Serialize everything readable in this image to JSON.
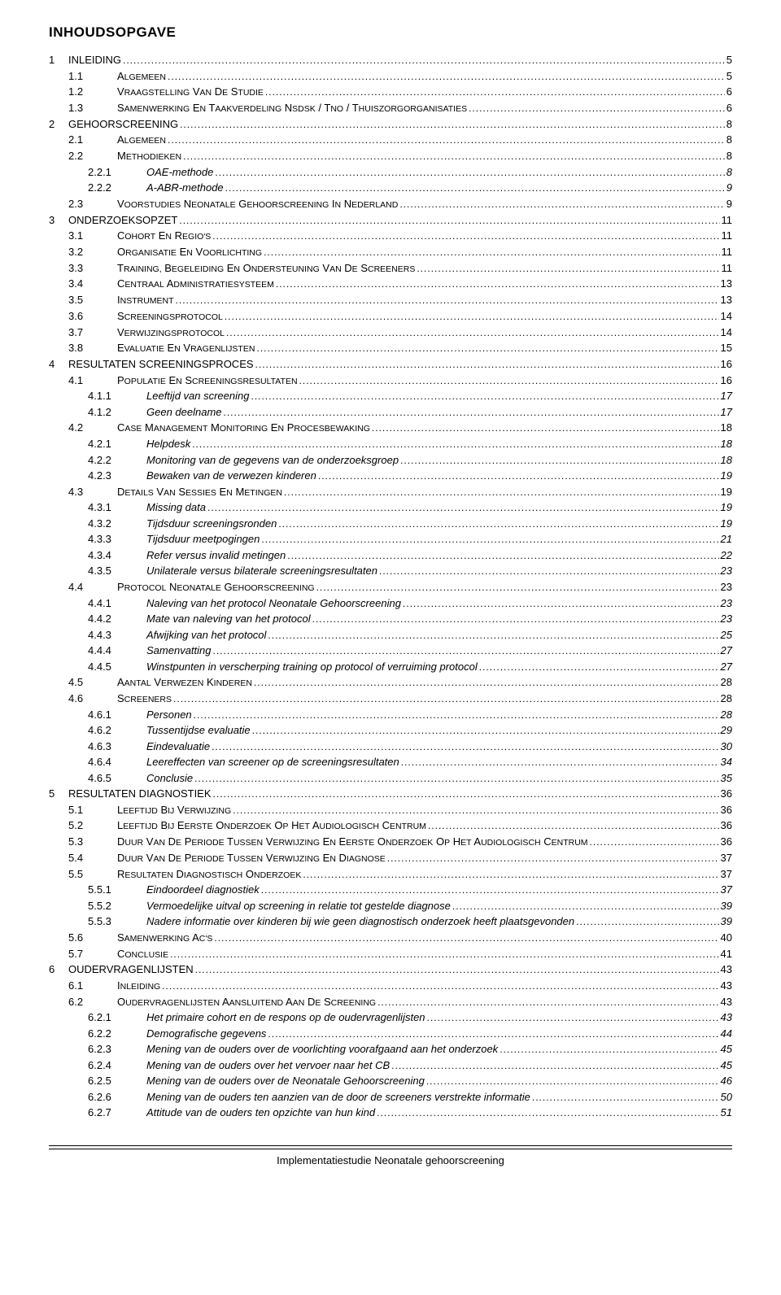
{
  "title": "INHOUDSOPGAVE",
  "footer": "Implementatiestudie Neonatale gehoorscreening",
  "entries": [
    {
      "level": 0,
      "num": "1",
      "label": "INLEIDING",
      "page": "5"
    },
    {
      "level": 1,
      "num": "1.1",
      "label": "ALGEMEEN",
      "page": "5"
    },
    {
      "level": 1,
      "num": "1.2",
      "label": "VRAAGSTELLING VAN DE STUDIE",
      "page": "6"
    },
    {
      "level": 1,
      "num": "1.3",
      "label": "SAMENWERKING EN TAAKVERDELING NSDSK / TNO / THUISZORGORGANISATIES",
      "page": "6"
    },
    {
      "level": 0,
      "num": "2",
      "label": "GEHOORSCREENING",
      "page": "8"
    },
    {
      "level": 1,
      "num": "2.1",
      "label": "ALGEMEEN",
      "page": "8"
    },
    {
      "level": 1,
      "num": "2.2",
      "label": "METHODIEKEN",
      "page": "8"
    },
    {
      "level": 2,
      "num": "2.2.1",
      "label": "OAE-methode",
      "page": "8"
    },
    {
      "level": 2,
      "num": "2.2.2",
      "label": "A-ABR-methode",
      "page": "9"
    },
    {
      "level": 1,
      "num": "2.3",
      "label": "VOORSTUDIES NEONATALE GEHOORSCREENING IN NEDERLAND",
      "page": "9"
    },
    {
      "level": 0,
      "num": "3",
      "label": "ONDERZOEKSOPZET",
      "page": "11"
    },
    {
      "level": 1,
      "num": "3.1",
      "label": "COHORT EN REGIO'S",
      "page": "11"
    },
    {
      "level": 1,
      "num": "3.2",
      "label": "ORGANISATIE EN VOORLICHTING",
      "page": "11"
    },
    {
      "level": 1,
      "num": "3.3",
      "label": "TRAINING, BEGELEIDING EN ONDERSTEUNING VAN DE SCREENERS",
      "page": "11"
    },
    {
      "level": 1,
      "num": "3.4",
      "label": "CENTRAAL ADMINISTRATIESYSTEEM",
      "page": "13"
    },
    {
      "level": 1,
      "num": "3.5",
      "label": "INSTRUMENT",
      "page": "13"
    },
    {
      "level": 1,
      "num": "3.6",
      "label": "SCREENINGSPROTOCOL",
      "page": "14"
    },
    {
      "level": 1,
      "num": "3.7",
      "label": "VERWIJZINGSPROTOCOL",
      "page": "14"
    },
    {
      "level": 1,
      "num": "3.8",
      "label": "EVALUATIE EN VRAGENLIJSTEN",
      "page": "15"
    },
    {
      "level": 0,
      "num": "4",
      "label": "RESULTATEN SCREENINGSPROCES",
      "page": "16"
    },
    {
      "level": 1,
      "num": "4.1",
      "label": "POPULATIE EN SCREENINGSRESULTATEN",
      "page": "16"
    },
    {
      "level": 2,
      "num": "4.1.1",
      "label": "Leeftijd van screening",
      "page": "17"
    },
    {
      "level": 2,
      "num": "4.1.2",
      "label": "Geen deelname",
      "page": "17"
    },
    {
      "level": 1,
      "num": "4.2",
      "label": "CASE MANAGEMENT MONITORING EN PROCESBEWAKING",
      "page": "18"
    },
    {
      "level": 2,
      "num": "4.2.1",
      "label": "Helpdesk",
      "page": "18"
    },
    {
      "level": 2,
      "num": "4.2.2",
      "label": "Monitoring van de gegevens van de onderzoeksgroep",
      "page": "18"
    },
    {
      "level": 2,
      "num": "4.2.3",
      "label": "Bewaken van de verwezen kinderen",
      "page": "19"
    },
    {
      "level": 1,
      "num": "4.3",
      "label": "DETAILS VAN SESSIES EN METINGEN",
      "page": "19"
    },
    {
      "level": 2,
      "num": "4.3.1",
      "label": "Missing data",
      "page": "19"
    },
    {
      "level": 2,
      "num": "4.3.2",
      "label": "Tijdsduur screeningsronden",
      "page": "19"
    },
    {
      "level": 2,
      "num": "4.3.3",
      "label": "Tijdsduur meetpogingen",
      "page": "21"
    },
    {
      "level": 2,
      "num": "4.3.4",
      "label": "Refer versus invalid metingen",
      "page": "22"
    },
    {
      "level": 2,
      "num": "4.3.5",
      "label": "Unilaterale versus bilaterale screeningsresultaten",
      "page": "23"
    },
    {
      "level": 1,
      "num": "4.4",
      "label": "PROTOCOL NEONATALE GEHOORSCREENING",
      "page": "23"
    },
    {
      "level": 2,
      "num": "4.4.1",
      "label": "Naleving van het protocol Neonatale Gehoorscreening",
      "page": "23"
    },
    {
      "level": 2,
      "num": "4.4.2",
      "label": "Mate van naleving van het protocol",
      "page": "23"
    },
    {
      "level": 2,
      "num": "4.4.3",
      "label": "Afwijking van het protocol",
      "page": "25"
    },
    {
      "level": 2,
      "num": "4.4.4",
      "label": "Samenvatting",
      "page": "27"
    },
    {
      "level": 2,
      "num": "4.4.5",
      "label": "Winstpunten in verscherping training op protocol of verruiming protocol",
      "page": "27"
    },
    {
      "level": 1,
      "num": "4.5",
      "label": "AANTAL VERWEZEN KINDEREN",
      "page": "28"
    },
    {
      "level": 1,
      "num": "4.6",
      "label": "SCREENERS",
      "page": "28"
    },
    {
      "level": 2,
      "num": "4.6.1",
      "label": "Personen",
      "page": "28"
    },
    {
      "level": 2,
      "num": "4.6.2",
      "label": "Tussentijdse evaluatie",
      "page": "29"
    },
    {
      "level": 2,
      "num": "4.6.3",
      "label": "Eindevaluatie",
      "page": "30"
    },
    {
      "level": 2,
      "num": "4.6.4",
      "label": "Leereffecten van screener op de screeningsresultaten",
      "page": "34"
    },
    {
      "level": 2,
      "num": "4.6.5",
      "label": "Conclusie",
      "page": "35"
    },
    {
      "level": 0,
      "num": "5",
      "label": "RESULTATEN DIAGNOSTIEK",
      "page": "36"
    },
    {
      "level": 1,
      "num": "5.1",
      "label": "LEEFTIJD BIJ VERWIJZING",
      "page": "36"
    },
    {
      "level": 1,
      "num": "5.2",
      "label": "LEEFTIJD BIJ EERSTE ONDERZOEK OP HET AUDIOLOGISCH CENTRUM",
      "page": "36"
    },
    {
      "level": 1,
      "num": "5.3",
      "label": "DUUR VAN DE PERIODE TUSSEN VERWIJZING EN EERSTE ONDERZOEK OP HET AUDIOLOGISCH CENTRUM",
      "page": "36"
    },
    {
      "level": 1,
      "num": "5.4",
      "label": "DUUR VAN DE PERIODE TUSSEN VERWIJZING EN DIAGNOSE",
      "page": "37"
    },
    {
      "level": 1,
      "num": "5.5",
      "label": "RESULTATEN DIAGNOSTISCH ONDERZOEK",
      "page": "37"
    },
    {
      "level": 2,
      "num": "5.5.1",
      "label": "Eindoordeel diagnostiek",
      "page": "37"
    },
    {
      "level": 2,
      "num": "5.5.2",
      "label": "Vermoedelijke uitval op screening in relatie tot gestelde diagnose",
      "page": "39"
    },
    {
      "level": 2,
      "num": "5.5.3",
      "label": "Nadere informatie over kinderen bij wie geen diagnostisch onderzoek heeft plaatsgevonden",
      "page": "39"
    },
    {
      "level": 1,
      "num": "5.6",
      "label": "SAMENWERKING AC'S",
      "page": "40"
    },
    {
      "level": 1,
      "num": "5.7",
      "label": "CONCLUSIE",
      "page": "41"
    },
    {
      "level": 0,
      "num": "6",
      "label": "OUDERVRAGENLIJSTEN",
      "page": "43"
    },
    {
      "level": 1,
      "num": "6.1",
      "label": "INLEIDING",
      "page": "43"
    },
    {
      "level": 1,
      "num": "6.2",
      "label": "OUDERVRAGENLIJSTEN AANSLUITEND AAN DE SCREENING",
      "page": "43"
    },
    {
      "level": 2,
      "num": "6.2.1",
      "label": "Het primaire cohort en de respons op de oudervragenlijsten",
      "page": "43"
    },
    {
      "level": 2,
      "num": "6.2.2",
      "label": "Demografische gegevens",
      "page": "44"
    },
    {
      "level": 2,
      "num": "6.2.3",
      "label": "Mening van de ouders over de voorlichting voorafgaand aan het onderzoek",
      "page": "45"
    },
    {
      "level": 2,
      "num": "6.2.4",
      "label": "Mening van de ouders over het vervoer naar het CB",
      "page": "45"
    },
    {
      "level": 2,
      "num": "6.2.5",
      "label": "Mening van de ouders over de Neonatale Gehoorscreening",
      "page": "46"
    },
    {
      "level": 2,
      "num": "6.2.6",
      "label": "Mening van de ouders ten aanzien van de door de screeners verstrekte informatie",
      "page": "50"
    },
    {
      "level": 2,
      "num": "6.2.7",
      "label": "Attitude van de ouders ten opzichte van hun kind",
      "page": "51"
    }
  ]
}
